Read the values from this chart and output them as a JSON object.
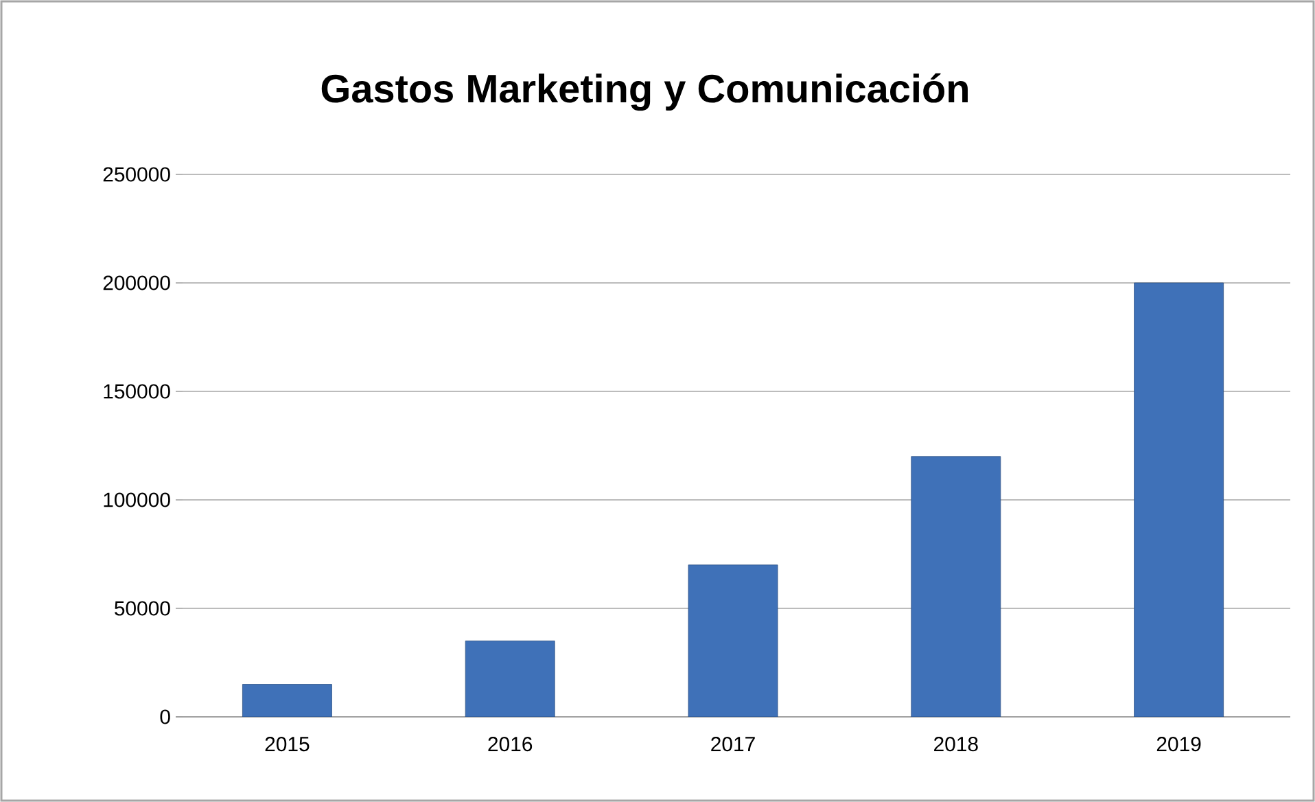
{
  "chart_data": {
    "type": "bar",
    "title": "Gastos Marketing y Comunicación",
    "categories": [
      "2015",
      "2016",
      "2017",
      "2018",
      "2019"
    ],
    "values": [
      15000,
      35000,
      70000,
      120000,
      200000
    ],
    "color": "#3f71b8",
    "ylim": [
      0,
      250000
    ],
    "yticks": [
      0,
      50000,
      100000,
      150000,
      200000,
      250000
    ],
    "grid": "y"
  }
}
